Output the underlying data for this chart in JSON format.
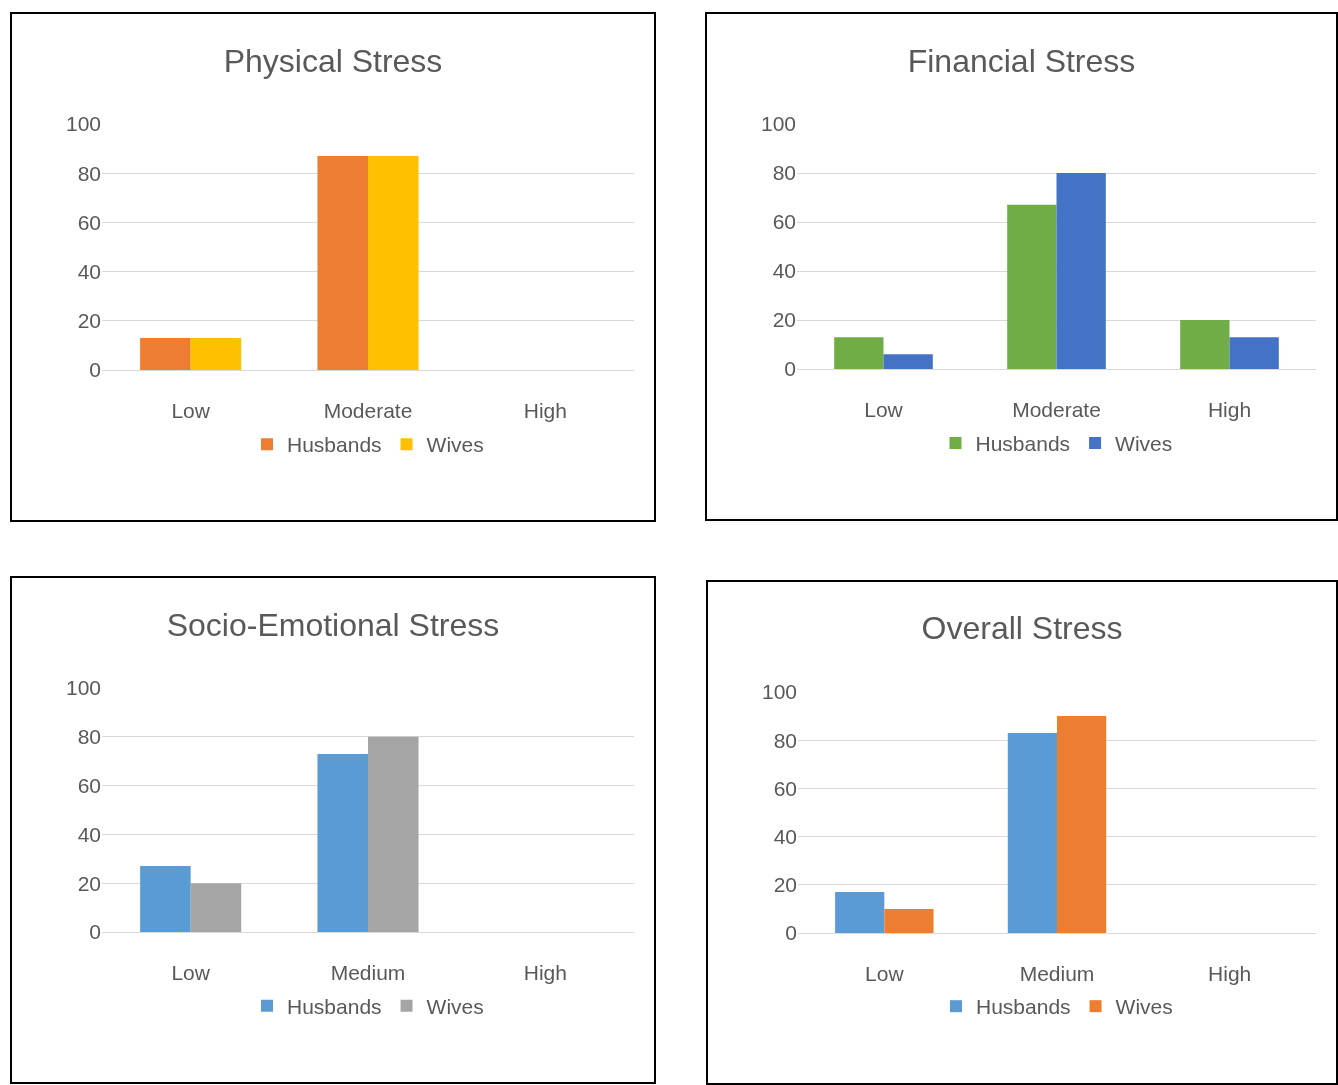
{
  "chart_data": [
    {
      "type": "bar",
      "title": "Physical Stress",
      "categories": [
        "Low",
        "Moderate",
        "High"
      ],
      "series": [
        {
          "name": "Husbands",
          "color": "#ed7d31",
          "values": [
            13,
            87,
            0
          ]
        },
        {
          "name": "Wives",
          "color": "#ffc000",
          "values": [
            13,
            87,
            0
          ]
        }
      ],
      "ylim": [
        0,
        100
      ],
      "yticks": [
        0,
        20,
        40,
        60,
        80,
        100
      ],
      "grid": "y",
      "legend": "bottom"
    },
    {
      "type": "bar",
      "title": "Financial Stress",
      "categories": [
        "Low",
        "Moderate",
        "High"
      ],
      "series": [
        {
          "name": "Husbands",
          "color": "#70ad47",
          "values": [
            13,
            67,
            20
          ]
        },
        {
          "name": "Wives",
          "color": "#4472c4",
          "values": [
            6,
            80,
            13
          ]
        }
      ],
      "ylim": [
        0,
        100
      ],
      "yticks": [
        0,
        20,
        40,
        60,
        80,
        100
      ],
      "grid": "y",
      "legend": "bottom"
    },
    {
      "type": "bar",
      "title": "Socio-Emotional Stress",
      "categories": [
        "Low",
        "Medium",
        "High"
      ],
      "series": [
        {
          "name": "Husbands",
          "color": "#5b9bd5",
          "values": [
            27,
            73,
            0
          ]
        },
        {
          "name": "Wives",
          "color": "#a5a5a5",
          "values": [
            20,
            80,
            0
          ]
        }
      ],
      "ylim": [
        0,
        100
      ],
      "yticks": [
        0,
        20,
        40,
        60,
        80,
        100
      ],
      "grid": "y",
      "legend": "bottom"
    },
    {
      "type": "bar",
      "title": "Overall Stress",
      "categories": [
        "Low",
        "Medium",
        "High"
      ],
      "series": [
        {
          "name": "Husbands",
          "color": "#5b9bd5",
          "values": [
            17,
            83,
            0
          ]
        },
        {
          "name": "Wives",
          "color": "#ed7d31",
          "values": [
            10,
            90,
            0
          ]
        }
      ],
      "ylim": [
        0,
        100
      ],
      "yticks": [
        0,
        20,
        40,
        60,
        80,
        100
      ],
      "grid": "y",
      "legend": "bottom"
    }
  ]
}
